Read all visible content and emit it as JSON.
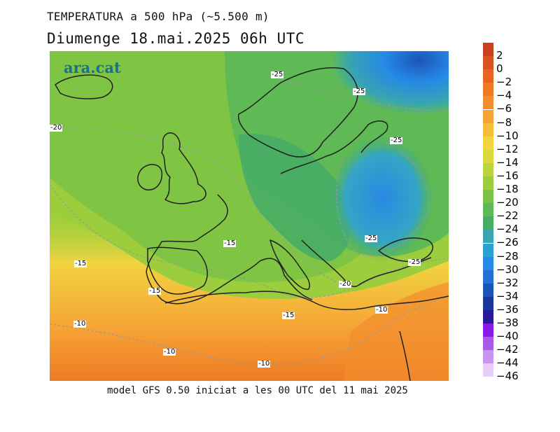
{
  "title": {
    "line1": "TEMPERATURA a 500 hPa (~5.500 m)",
    "line2": "Diumenge  18.mai.2025 06h UTC"
  },
  "footer": "model GFS 0.50 iniciat a les 00 UTC del 11 mai 2025",
  "logo": "ara.cat",
  "contour_labels": [
    "-25",
    "-25",
    "-20",
    "-25",
    "-25",
    "-15",
    "-15",
    "-15",
    "-25",
    "-20",
    "-10",
    "-15",
    "-10",
    "-10",
    "-10"
  ],
  "legend": {
    "labels": [
      "2",
      "0",
      "-2",
      "-4",
      "-6",
      "-8",
      "-10",
      "-12",
      "-14",
      "-16",
      "-18",
      "-20",
      "-22",
      "-24",
      "-26",
      "-28",
      "-30",
      "-32",
      "-34",
      "-36",
      "-38",
      "-40",
      "-42",
      "-44",
      "-46"
    ],
    "colors": [
      "#c8401e",
      "#d9531e",
      "#e8641f",
      "#ee7a25",
      "#f28d2d",
      "#f6a235",
      "#f5bd3a",
      "#f1d440",
      "#d9d93e",
      "#bcd43c",
      "#9bcd3d",
      "#7cc344",
      "#5fba55",
      "#47ad66",
      "#38a5b0",
      "#2aa0d4",
      "#2689e6",
      "#2170d6",
      "#1c55b8",
      "#18379a",
      "#2a1a9a",
      "#8a1ae8",
      "#a85ae8",
      "#c794ee",
      "#e6ccf6"
    ]
  }
}
